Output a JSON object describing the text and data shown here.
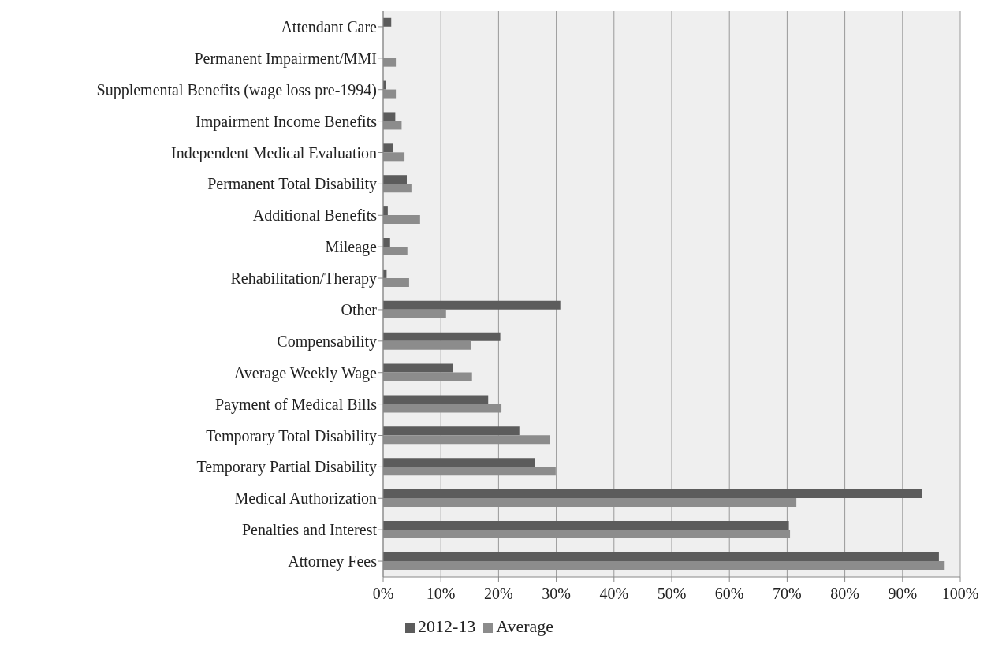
{
  "chart_data": {
    "type": "bar",
    "orientation": "horizontal",
    "categories": [
      "Attendant Care",
      "Permanent Impairment/MMI",
      "Supplemental Benefits (wage loss pre-1994)",
      "Impairment Income Benefits",
      "Independent Medical Evaluation",
      "Permanent Total Disability",
      "Additional Benefits",
      "Mileage",
      "Rehabilitation/Therapy",
      "Other",
      "Compensability",
      "Average Weekly Wage",
      "Payment of Medical Bills",
      "Temporary Total Disability",
      "Temporary Partial Disability",
      "Medical Authorization",
      "Penalties and Interest",
      "Attorney Fees"
    ],
    "series": [
      {
        "name": "2012-13",
        "color": "#5c5c5c",
        "values": [
          1.4,
          null,
          0.5,
          2.1,
          1.7,
          4.1,
          0.8,
          1.2,
          0.6,
          30.7,
          20.3,
          12.1,
          18.2,
          23.6,
          26.3,
          93.4,
          70.3,
          96.3
        ]
      },
      {
        "name": "Average",
        "color": "#8c8c8c",
        "values": [
          0,
          2.2,
          2.2,
          3.2,
          3.7,
          4.9,
          6.4,
          4.2,
          4.5,
          10.9,
          15.2,
          15.4,
          20.5,
          28.9,
          29.9,
          71.6,
          70.5,
          97.3
        ]
      }
    ],
    "xlim": [
      0,
      100
    ],
    "xticks": [
      {
        "value": 0,
        "label": "0%"
      },
      {
        "value": 10,
        "label": "10%"
      },
      {
        "value": 20,
        "label": "20%"
      },
      {
        "value": 30,
        "label": "30%"
      },
      {
        "value": 40,
        "label": "40%"
      },
      {
        "value": 50,
        "label": "50%"
      },
      {
        "value": 60,
        "label": "60%"
      },
      {
        "value": 70,
        "label": "70%"
      },
      {
        "value": 80,
        "label": "80%"
      },
      {
        "value": 90,
        "label": "90%"
      },
      {
        "value": 100,
        "label": "100%"
      }
    ],
    "grid": "x",
    "legend": "bottom"
  }
}
